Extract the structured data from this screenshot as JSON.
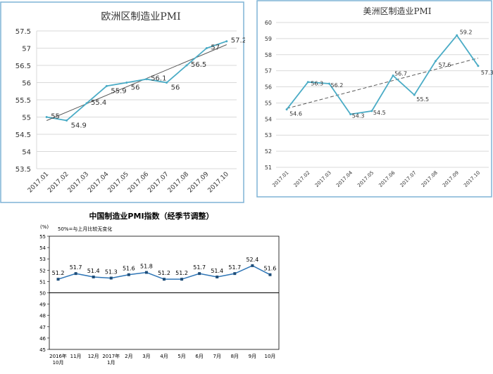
{
  "chart_data": [
    {
      "type": "line",
      "title": "欧洲区制造业PMI",
      "categories": [
        "2017.01",
        "2017.02",
        "2017.03",
        "2017.04",
        "2017.05",
        "2017.06",
        "2017.07",
        "2017.08",
        "2017.09",
        "2017.10"
      ],
      "values": [
        55,
        54.9,
        55.4,
        55.9,
        56,
        56.1,
        56,
        56.5,
        57,
        57.2
      ],
      "value_labels": [
        "55",
        "54.9",
        "55.4",
        "55.9",
        "56",
        "56.1",
        "56",
        "56.5",
        "57",
        "57.2"
      ],
      "yticks": [
        "53.5",
        "54",
        "54.5",
        "55",
        "55.5",
        "56",
        "56.5",
        "57",
        "57.5"
      ],
      "ylim": [
        53.5,
        57.5
      ],
      "trendline": true,
      "grid": true,
      "colors": {
        "series": "#4bacc6",
        "trend": "#595959",
        "grid": "#d9d9d9",
        "border": "#7fb3d5"
      }
    },
    {
      "type": "line",
      "title": "美洲区制造业PMI",
      "categories": [
        "2017.01",
        "2017.02",
        "2017.03",
        "2017.04",
        "2017.05",
        "2017.06",
        "2017.07",
        "2017.08",
        "2017.09",
        "2017.10"
      ],
      "values": [
        54.6,
        56.3,
        56.2,
        54.3,
        54.5,
        56.7,
        55.5,
        57.6,
        59.2,
        57.3
      ],
      "value_labels": [
        "54.6",
        "56.3",
        "56.2",
        "54.3",
        "54.5",
        "56.7",
        "55.5",
        "57.6",
        "59.2",
        "57.3"
      ],
      "yticks": [
        "51",
        "52",
        "53",
        "54",
        "55",
        "56",
        "57",
        "58",
        "59",
        "60"
      ],
      "ylim": [
        51,
        60
      ],
      "trendline": true,
      "trendline_style": "dashed",
      "grid": true,
      "colors": {
        "series": "#4bacc6",
        "trend": "#595959",
        "grid": "#d9d9d9",
        "border": "#7fb3d5"
      }
    },
    {
      "type": "line",
      "title": "中国制造业PMI指数（经季节调整）",
      "unit_label": "(%)",
      "annotation": "50%=与上月比较无变化",
      "categories": [
        [
          "2016年",
          "10月"
        ],
        [
          "11月"
        ],
        [
          "12月"
        ],
        [
          "2017年",
          "1月"
        ],
        [
          "2月"
        ],
        [
          "3月"
        ],
        [
          "4月"
        ],
        [
          "5月"
        ],
        [
          "6月"
        ],
        [
          "7月"
        ],
        [
          "8月"
        ],
        [
          "9月"
        ],
        [
          "10月"
        ]
      ],
      "values": [
        51.2,
        51.7,
        51.4,
        51.3,
        51.6,
        51.8,
        51.2,
        51.2,
        51.7,
        51.4,
        51.7,
        52.4,
        51.6
      ],
      "value_labels": [
        "51.2",
        "51.7",
        "51.4",
        "51.3",
        "51.6",
        "51.8",
        "51.2",
        "51.2",
        "51.7",
        "51.4",
        "51.7",
        "52.4",
        "51.6"
      ],
      "yticks": [
        "45",
        "46",
        "47",
        "48",
        "49",
        "50",
        "51",
        "52",
        "53",
        "54",
        "55"
      ],
      "ylim": [
        45,
        55
      ],
      "reference_line": 50,
      "grid": false,
      "colors": {
        "series": "#2e75b6",
        "marker": "#1f4e79",
        "axis": "#000000"
      }
    }
  ]
}
